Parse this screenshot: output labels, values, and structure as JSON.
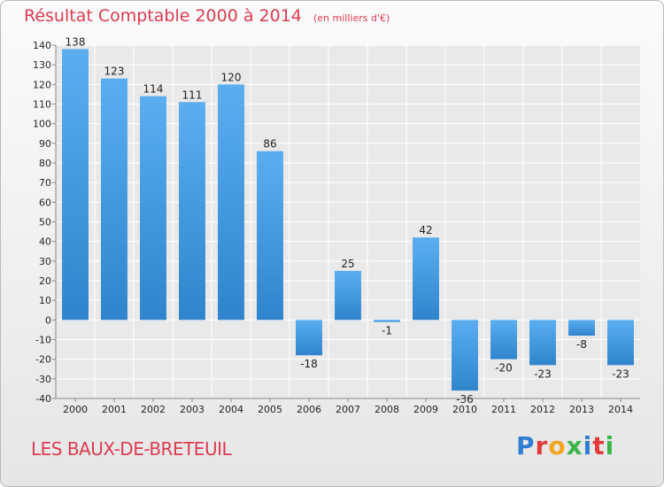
{
  "header": {
    "title": "Résultat Comptable 2000 à 2014",
    "unit": "(en milliers d'€)"
  },
  "footer": {
    "commune": "LES BAUX-DE-BRETEUIL",
    "logo_text": "Proxiti"
  },
  "colors": {
    "title": "#dd3b50",
    "bar_top": "#5aaef0",
    "bar_bottom": "#2f84cc",
    "logo": [
      "#2f7fd0",
      "#e23b3b",
      "#f2a51f",
      "#3ab54a",
      "#2f7fd0",
      "#e23b3b",
      "#3ab54a"
    ]
  },
  "chart_data": {
    "type": "bar",
    "title": "Résultat Comptable 2000 à 2014",
    "subtitle": "(en milliers d'€)",
    "categories": [
      "2000",
      "2001",
      "2002",
      "2003",
      "2004",
      "2005",
      "2006",
      "2007",
      "2008",
      "2009",
      "2010",
      "2011",
      "2012",
      "2013",
      "2014"
    ],
    "values": [
      138,
      123,
      114,
      111,
      120,
      86,
      -18,
      25,
      -1,
      42,
      -36,
      -20,
      -23,
      -8,
      -23
    ],
    "ylim": [
      -40,
      140
    ],
    "yticks": [
      -40,
      -30,
      -20,
      -10,
      0,
      10,
      20,
      30,
      40,
      50,
      60,
      70,
      80,
      90,
      100,
      110,
      120,
      130,
      140
    ],
    "grid": true,
    "legend": "none"
  }
}
